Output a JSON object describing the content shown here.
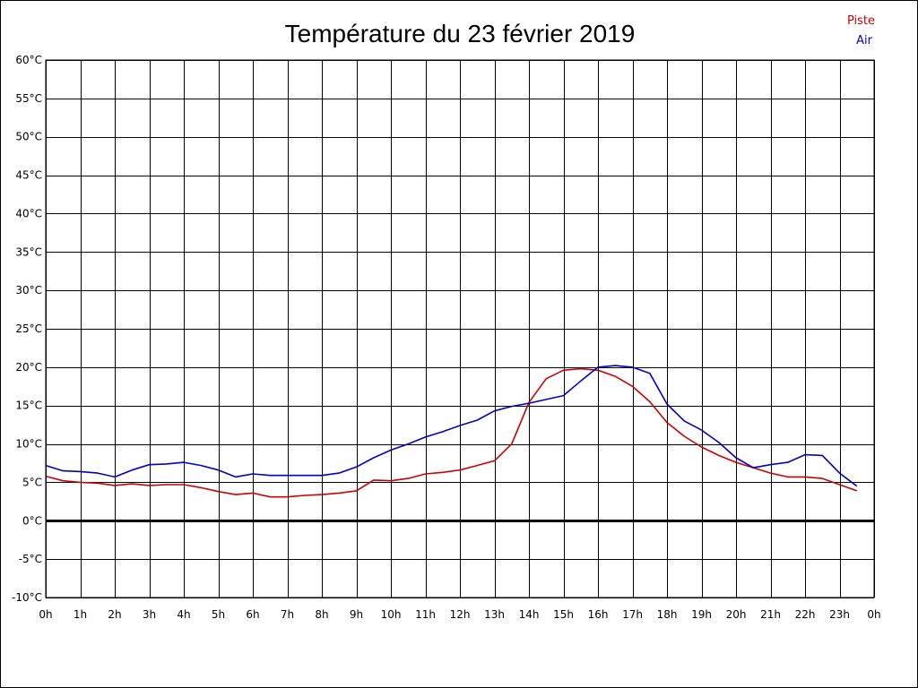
{
  "chart_data": {
    "type": "line",
    "title": "Température du 23 février 2019",
    "xlabel": "",
    "ylabel": "",
    "xlim": [
      0,
      24
    ],
    "ylim": [
      -10,
      60
    ],
    "grid": true,
    "legend_position": "top-right",
    "x_ticks": [
      0,
      1,
      2,
      3,
      4,
      5,
      6,
      7,
      8,
      9,
      10,
      11,
      12,
      13,
      14,
      15,
      16,
      17,
      18,
      19,
      20,
      21,
      22,
      23,
      24
    ],
    "x_tick_labels": [
      "0h",
      "1h",
      "2h",
      "3h",
      "4h",
      "5h",
      "6h",
      "7h",
      "8h",
      "9h",
      "10h",
      "11h",
      "12h",
      "13h",
      "14h",
      "15h",
      "16h",
      "17h",
      "18h",
      "19h",
      "20h",
      "21h",
      "22h",
      "23h",
      "0h"
    ],
    "y_ticks": [
      -10,
      -5,
      0,
      5,
      10,
      15,
      20,
      25,
      30,
      35,
      40,
      45,
      50,
      55,
      60
    ],
    "y_tick_labels": [
      "-10°C",
      "-5°C",
      "0°C",
      "5°C",
      "10°C",
      "15°C",
      "20°C",
      "25°C",
      "30°C",
      "35°C",
      "40°C",
      "45°C",
      "50°C",
      "55°C",
      "60°C"
    ],
    "x": [
      0,
      0.5,
      1,
      1.5,
      2,
      2.5,
      3,
      3.5,
      4,
      4.5,
      5,
      5.5,
      6,
      6.5,
      7,
      7.5,
      8,
      8.5,
      9,
      9.5,
      10,
      10.5,
      11,
      11.5,
      12,
      12.5,
      13,
      13.5,
      14,
      14.5,
      15,
      15.5,
      16,
      16.5,
      17,
      17.5,
      18,
      18.5,
      19,
      19.5,
      20,
      20.5,
      21,
      21.5,
      22,
      22.5,
      23,
      23.5
    ],
    "series": [
      {
        "name": "Piste",
        "color": "#cc0000",
        "values": [
          5.8,
          5.2,
          5.0,
          4.9,
          4.6,
          4.8,
          4.6,
          4.7,
          4.7,
          4.3,
          3.8,
          3.4,
          3.6,
          3.1,
          3.1,
          3.3,
          3.4,
          3.6,
          3.9,
          5.3,
          5.2,
          5.5,
          6.1,
          6.3,
          6.6,
          7.2,
          7.8,
          10.0,
          15.4,
          18.5,
          19.6,
          19.8,
          19.6,
          18.8,
          17.5,
          15.5,
          12.8,
          11.0,
          9.6,
          8.5,
          7.6,
          6.9,
          6.2,
          5.7,
          5.7,
          5.5,
          4.7,
          3.9
        ]
      },
      {
        "name": "Air",
        "color": "#0000cc",
        "values": [
          7.2,
          6.5,
          6.4,
          6.2,
          5.7,
          6.6,
          7.3,
          7.4,
          7.6,
          7.2,
          6.6,
          5.7,
          6.1,
          5.9,
          5.9,
          5.9,
          5.9,
          6.2,
          7.0,
          8.2,
          9.2,
          10.0,
          10.9,
          11.6,
          12.4,
          13.1,
          14.3,
          14.9,
          15.3,
          15.8,
          16.3,
          18.2,
          20.0,
          20.2,
          20.0,
          19.2,
          15.2,
          13.0,
          11.8,
          10.2,
          8.2,
          6.9,
          7.3,
          7.6,
          8.6,
          8.5,
          6.2,
          4.5
        ]
      }
    ]
  }
}
